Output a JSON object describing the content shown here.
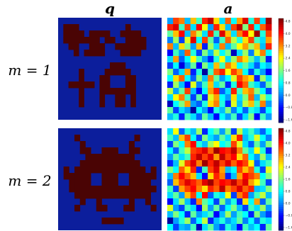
{
  "figure": {
    "col_titles": [
      "q",
      "a"
    ],
    "row_labels": [
      "m = 1",
      "m = 2"
    ]
  },
  "colors": {
    "pattern_on": "#4a0404",
    "pattern_off": "#0c1e9c"
  },
  "colorbar": {
    "ticks": [
      "4.8",
      "4.0",
      "3.2",
      "2.4",
      "1.6",
      "0.8",
      "0.0",
      "−0.8",
      "−1.6"
    ]
  },
  "chart_data": [
    {
      "type": "heatmap",
      "row": "m = 1",
      "column": "q",
      "binary": true,
      "pattern": [
        "...................",
        ".111.........1.....",
        ".1111.1111..1111...",
        ".1111111.11..1111..",
        "..11..111..111111..",
        "...1.1111...1111...",
        "....................",
        "..........111......",
        "....1....11111.....",
        "....1...11...11....",
        "..11111.11...11....",
        "....1...1111111....",
        "....1...1..11.1....",
        "....1...1..11.1....",
        "...................",
        "..................."
      ]
    },
    {
      "type": "heatmap",
      "row": "m = 1",
      "column": "a",
      "colorbar_range": [
        -1.6,
        4.8
      ],
      "values": [
        [
          0.2,
          3.6,
          3.2,
          0.4,
          2.8,
          1.2,
          3.8,
          4.4,
          2.6,
          0.6,
          3.4,
          0.8,
          3.0,
          4.2,
          1.0,
          3.6,
          0.6,
          4.6
        ],
        [
          3.8,
          4.2,
          1.2,
          3.6,
          0.6,
          4.0,
          2.4,
          0.2,
          3.8,
          2.6,
          0.4,
          3.6,
          4.4,
          1.6,
          3.8,
          0.8,
          3.4,
          4.2
        ],
        [
          1.4,
          2.8,
          4.0,
          0.4,
          3.2,
          2.0,
          0.6,
          3.8,
          1.2,
          4.2,
          2.8,
          0.6,
          3.2,
          4.0,
          2.4,
          4.6,
          1.0,
          3.6
        ],
        [
          0.0,
          1.8,
          -0.4,
          2.2,
          4.2,
          0.8,
          3.6,
          1.4,
          -0.2,
          1.2,
          3.4,
          2.0,
          1.0,
          2.6,
          3.6,
          1.2,
          0.6,
          3.0
        ],
        [
          3.2,
          0.4,
          2.6,
          1.6,
          0.2,
          2.8,
          -0.6,
          1.8,
          0.6,
          3.2,
          0.4,
          1.4,
          2.4,
          3.0,
          1.8,
          2.8,
          0.4,
          3.8
        ],
        [
          -0.8,
          1.2,
          0.2,
          3.4,
          1.0,
          -0.4,
          1.6,
          0.4,
          2.0,
          0.8,
          1.6,
          -1.2,
          0.6,
          1.8,
          0.0,
          2.2,
          3.2,
          0.8
        ],
        [
          0.6,
          3.0,
          -0.2,
          0.8,
          2.4,
          1.2,
          0.2,
          -0.6,
          1.0,
          2.4,
          0.6,
          1.8,
          3.2,
          2.6,
          1.4,
          0.4,
          1.6,
          -0.6
        ],
        [
          -0.4,
          0.8,
          -1.0,
          0.2,
          1.4,
          -0.8,
          1.6,
          0.6,
          2.8,
          1.2,
          3.2,
          2.6,
          0.8,
          1.4,
          0.6,
          -0.2,
          0.8,
          0.4
        ],
        [
          1.6,
          -0.2,
          0.6,
          3.0,
          -0.6,
          1.0,
          -1.4,
          1.2,
          3.4,
          3.8,
          2.4,
          3.6,
          3.0,
          0.8,
          -0.4,
          1.0,
          0.2,
          -0.8
        ],
        [
          0.8,
          2.6,
          3.4,
          0.8,
          -0.2,
          1.6,
          0.4,
          3.2,
          1.4,
          0.2,
          0.8,
          2.2,
          3.6,
          3.0,
          2.6,
          -0.6,
          1.8,
          0.6
        ],
        [
          -0.6,
          1.8,
          0.4,
          -0.8,
          2.2,
          0.0,
          1.2,
          2.8,
          0.6,
          1.4,
          -0.6,
          1.0,
          4.0,
          3.4,
          1.2,
          0.6,
          -0.2,
          1.4
        ],
        [
          2.0,
          0.2,
          1.4,
          3.6,
          0.4,
          -0.8,
          0.8,
          3.0,
          3.8,
          -0.2,
          0.6,
          3.8,
          1.2,
          2.8,
          3.2,
          1.6,
          0.8,
          -0.4
        ],
        [
          0.6,
          2.4,
          3.2,
          1.2,
          -0.4,
          1.4,
          -0.6,
          2.2,
          3.0,
          0.8,
          0.2,
          2.6,
          0.6,
          1.6,
          3.4,
          0.4,
          2.0,
          1.0
        ],
        [
          -1.2,
          0.8,
          1.6,
          3.0,
          0.2,
          -0.2,
          1.0,
          2.6,
          3.2,
          1.0,
          -0.6,
          2.2,
          0.4,
          2.0,
          2.8,
          1.2,
          3.2,
          0.2
        ],
        [
          1.4,
          -0.4,
          0.6,
          0.2,
          -1.4,
          0.8,
          0.2,
          -0.8,
          1.0,
          0.4,
          1.6,
          0.0,
          0.8,
          -0.2,
          1.0,
          0.6,
          -0.4,
          0.8
        ],
        [
          0.4,
          1.0,
          -0.6,
          1.2,
          0.6,
          -0.2,
          1.4,
          0.4,
          -0.8,
          0.8,
          0.2,
          1.2,
          -0.4,
          0.6,
          1.6,
          -0.8,
          1.2,
          0.2
        ]
      ]
    },
    {
      "type": "heatmap",
      "row": "m = 2",
      "column": "q",
      "binary": true,
      "pattern": [
        "...................",
        "...1..........1....",
        "....1........1.....",
        "....11..111..11....",
        ".....111111111.....",
        "....11111111111....",
        ".1.1111111111111.1.",
        ".11111..111..11111.",
        "..1111..111..1111..",
        "..1111111111111111.",
        "...11111111111111..",
        "....1..1.....1..1..",
        "...1...11...11...1.",
        "...................",
        "........1111.......",
        "..................."
      ]
    },
    {
      "type": "heatmap",
      "row": "m = 2",
      "column": "a",
      "colorbar_range": [
        -1.6,
        4.8
      ],
      "values": [
        [
          0.6,
          2.4,
          -0.2,
          1.0,
          0.4,
          1.8,
          -0.6,
          0.8,
          1.4,
          0.2,
          1.6,
          -0.4,
          2.0,
          0.6,
          1.2,
          0.4,
          -0.2,
          0.8
        ],
        [
          1.2,
          0.4,
          2.8,
          3.6,
          0.8,
          -0.4,
          1.6,
          0.6,
          0.2,
          1.4,
          0.6,
          2.6,
          3.8,
          0.4,
          1.0,
          2.2,
          0.8,
          0.0
        ],
        [
          -0.4,
          1.6,
          0.8,
          3.2,
          4.0,
          1.0,
          0.4,
          1.8,
          2.4,
          0.8,
          1.2,
          3.6,
          2.2,
          0.6,
          -0.2,
          1.4,
          0.2,
          1.6
        ],
        [
          0.8,
          -0.2,
          1.2,
          2.0,
          3.6,
          3.8,
          4.2,
          3.4,
          4.6,
          4.0,
          3.8,
          4.4,
          3.2,
          1.4,
          0.6,
          2.4,
          1.0,
          -0.6
        ],
        [
          0.2,
          1.4,
          0.6,
          1.2,
          3.8,
          4.4,
          3.6,
          4.2,
          3.0,
          4.4,
          3.6,
          4.0,
          2.6,
          3.4,
          0.8,
          0.2,
          1.8,
          0.4
        ],
        [
          -0.6,
          0.4,
          2.2,
          3.6,
          4.2,
          3.2,
          4.6,
          3.8,
          4.4,
          3.6,
          4.2,
          3.4,
          4.0,
          3.6,
          2.4,
          -0.2,
          0.6,
          1.2
        ],
        [
          1.6,
          0.8,
          3.4,
          2.6,
          3.8,
          -0.6,
          1.2,
          3.6,
          4.2,
          3.0,
          0.4,
          0.8,
          3.6,
          2.8,
          3.4,
          1.0,
          -0.4,
          2.2
        ],
        [
          0.4,
          3.2,
          4.0,
          3.4,
          2.8,
          0.6,
          -0.8,
          2.6,
          3.8,
          3.2,
          -0.6,
          0.4,
          3.0,
          4.0,
          3.6,
          3.2,
          0.8,
          1.6
        ],
        [
          -0.2,
          2.8,
          3.6,
          4.2,
          3.8,
          3.4,
          4.2,
          4.6,
          3.6,
          4.0,
          3.8,
          4.4,
          3.6,
          4.2,
          3.0,
          2.4,
          1.2,
          -0.4
        ],
        [
          1.2,
          -0.4,
          3.0,
          3.6,
          4.0,
          3.2,
          2.6,
          3.8,
          3.4,
          4.4,
          3.2,
          3.6,
          4.2,
          3.4,
          3.8,
          0.4,
          0.6,
          1.6
        ],
        [
          0.6,
          1.4,
          0.2,
          2.8,
          3.6,
          0.8,
          4.0,
          -0.2,
          1.0,
          0.6,
          2.4,
          -0.4,
          3.2,
          3.8,
          0.2,
          1.2,
          2.0,
          0.4
        ],
        [
          -0.8,
          0.6,
          1.8,
          0.4,
          -0.6,
          3.2,
          1.4,
          0.8,
          -0.4,
          1.6,
          0.2,
          1.0,
          -0.6,
          2.6,
          0.8,
          3.0,
          -0.2,
          1.4
        ],
        [
          2.2,
          0.2,
          -0.4,
          1.2,
          0.6,
          -0.8,
          1.8,
          0.2,
          1.4,
          -0.2,
          0.8,
          1.6,
          0.4,
          -0.4,
          1.2,
          0.6,
          1.8,
          0.2
        ],
        [
          0.4,
          1.6,
          0.8,
          -0.6,
          1.4,
          0.2,
          0.6,
          1.2,
          -0.8,
          0.4,
          1.8,
          0.2,
          1.2,
          0.8,
          -0.6,
          1.6,
          0.2,
          -0.4
        ],
        [
          -1.4,
          0.2,
          1.0,
          1.8,
          -0.2,
          0.8,
          2.0,
          -0.6,
          0.4,
          1.0,
          0.2,
          0.6,
          1.4,
          0.0,
          0.8,
          -0.2,
          1.0,
          0.6
        ],
        [
          0.8,
          -0.4,
          0.4,
          0.2,
          1.2,
          -1.2,
          0.6,
          1.4,
          0.2,
          -0.4,
          1.0,
          0.4,
          -0.8,
          1.2,
          0.4,
          0.8,
          -0.6,
          1.4
        ]
      ]
    }
  ]
}
